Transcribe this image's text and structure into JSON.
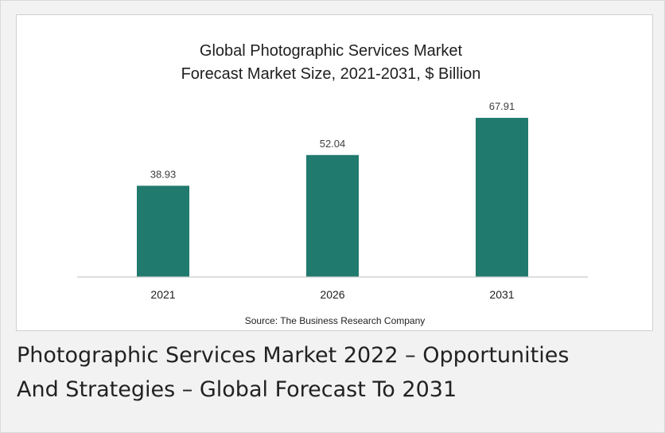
{
  "colors": {
    "bar": "#217a6e",
    "axis": "#c9c9c9",
    "text": "#333333",
    "label": "#404040"
  },
  "chart_data": {
    "type": "bar",
    "title": [
      "Global Photographic Services Market",
      "Forecast Market Size, 2021-2031, $ Billion"
    ],
    "categories": [
      "2021",
      "2026",
      "2031"
    ],
    "values": [
      38.93,
      52.04,
      67.91
    ],
    "value_labels": [
      "38.93",
      "52.04",
      "67.91"
    ],
    "source": "Source: The Business Research Company",
    "ylim": [
      0,
      90
    ],
    "grid": false,
    "legend": "none"
  },
  "caption": {
    "line1": "Photographic Services Market 2022 – Opportunities",
    "line2": "And Strategies – Global Forecast To 2031"
  }
}
